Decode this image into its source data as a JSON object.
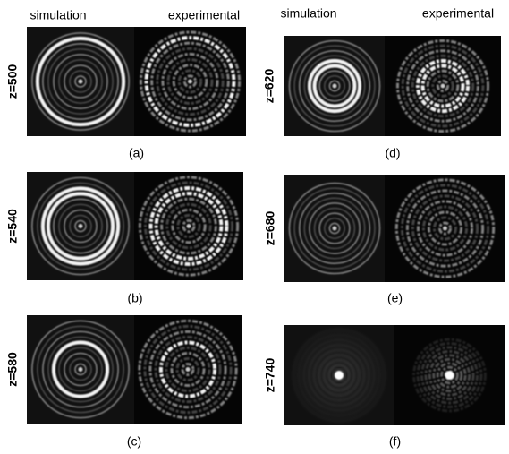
{
  "column_headers": {
    "left": [
      "simulation",
      "experimental"
    ],
    "right": [
      "simulation",
      "experimental"
    ]
  },
  "panels": [
    {
      "z_label": "z=500",
      "caption": "(a)"
    },
    {
      "z_label": "z=540",
      "caption": "(b)"
    },
    {
      "z_label": "z=580",
      "caption": "(c)"
    },
    {
      "z_label": "z=620",
      "caption": "(d)"
    },
    {
      "z_label": "z=680",
      "caption": "(e)"
    },
    {
      "z_label": "z=740",
      "caption": "(f)"
    }
  ]
}
